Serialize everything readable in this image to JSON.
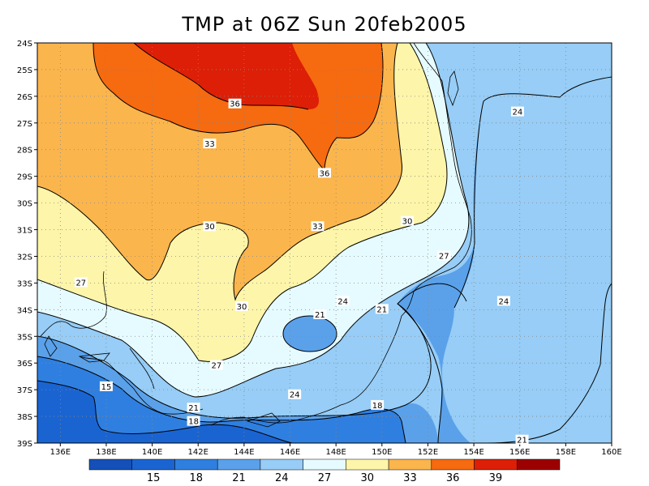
{
  "title": "TMP at 06Z Sun 20feb2005",
  "colors": {
    "c15": "#1a64d2",
    "c18": "#2f7fe0",
    "c21": "#5aa1ea",
    "c24": "#97cdf6",
    "c27": "#e6fbff",
    "c30": "#fdf5a9",
    "c33": "#fbb54d",
    "c36": "#f66a10",
    "c39": "#dc1f06",
    "c42": "#9c0000",
    "c12": "#1450b8"
  },
  "map_extent": {
    "lon_min": 135,
    "lon_max": 160,
    "lat_min": -39,
    "lat_max": -24
  },
  "lat_ticks": [
    "24S",
    "25S",
    "26S",
    "27S",
    "28S",
    "29S",
    "30S",
    "31S",
    "32S",
    "33S",
    "34S",
    "35S",
    "36S",
    "37S",
    "38S",
    "39S"
  ],
  "lon_ticks": [
    "136E",
    "138E",
    "140E",
    "142E",
    "144E",
    "146E",
    "148E",
    "150E",
    "152E",
    "154E",
    "156E",
    "158E",
    "160E"
  ],
  "contour_labels": [
    {
      "text": "36",
      "lon": 143.6,
      "lat": -26.3
    },
    {
      "text": "36",
      "lon": 147.5,
      "lat": -28.9
    },
    {
      "text": "33",
      "lon": 142.5,
      "lat": -27.8
    },
    {
      "text": "33",
      "lon": 147.2,
      "lat": -30.9
    },
    {
      "text": "30",
      "lon": 142.5,
      "lat": -30.9
    },
    {
      "text": "30",
      "lon": 151.1,
      "lat": -30.7
    },
    {
      "text": "30",
      "lon": 143.9,
      "lat": -33.9
    },
    {
      "text": "27",
      "lon": 136.9,
      "lat": -33.0
    },
    {
      "text": "27",
      "lon": 152.7,
      "lat": -32.0
    },
    {
      "text": "27",
      "lon": 142.8,
      "lat": -36.1
    },
    {
      "text": "24",
      "lon": 148.3,
      "lat": -33.7
    },
    {
      "text": "24",
      "lon": 155.3,
      "lat": -33.7
    },
    {
      "text": "24",
      "lon": 146.2,
      "lat": -37.2
    },
    {
      "text": "24",
      "lon": 155.9,
      "lat": -26.6
    },
    {
      "text": "21",
      "lon": 147.3,
      "lat": -34.2
    },
    {
      "text": "21",
      "lon": 150.0,
      "lat": -34.0
    },
    {
      "text": "21",
      "lon": 141.8,
      "lat": -37.7
    },
    {
      "text": "21",
      "lon": 156.1,
      "lat": -38.9
    },
    {
      "text": "18",
      "lon": 141.8,
      "lat": -38.2
    },
    {
      "text": "18",
      "lon": 149.8,
      "lat": -37.6
    },
    {
      "text": "15",
      "lon": 138.0,
      "lat": -36.9
    }
  ],
  "colorbar": {
    "labels": [
      "15",
      "18",
      "21",
      "24",
      "27",
      "30",
      "33",
      "36",
      "39"
    ]
  }
}
